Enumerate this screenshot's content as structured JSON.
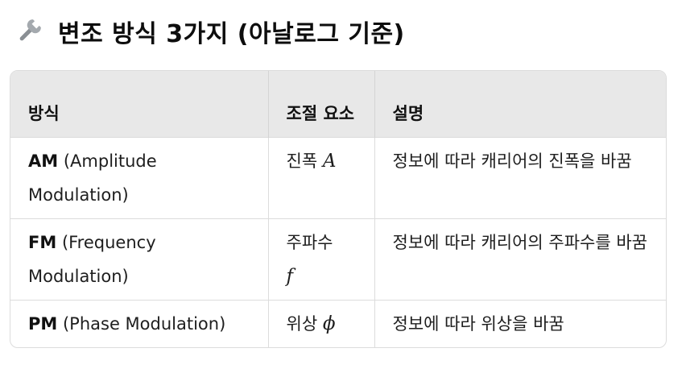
{
  "heading": {
    "icon": "wrench-icon",
    "title": "변조 방식 3가지 (아날로그 기준)"
  },
  "table": {
    "headers": [
      "방식",
      "조절 요소",
      "설명"
    ],
    "rows": [
      {
        "abbr": "AM",
        "full": "(Amplitude Modulation)",
        "element": "진폭",
        "symbol": "A",
        "description": "정보에 따라 캐리어의 진폭을 바꿈"
      },
      {
        "abbr": "FM",
        "full": "(Frequency Modulation)",
        "element": "주파수",
        "symbol": "f",
        "description": "정보에 따라 캐리어의 주파수를 바꿈"
      },
      {
        "abbr": "PM",
        "full": "(Phase Modulation)",
        "element": "위상",
        "symbol": "ϕ",
        "description": "정보에 따라 위상을 바꿈"
      }
    ]
  },
  "colors": {
    "header_bg": "#e8e8e8",
    "border": "#dcdcdc",
    "icon_gray": "#8a8f94"
  }
}
